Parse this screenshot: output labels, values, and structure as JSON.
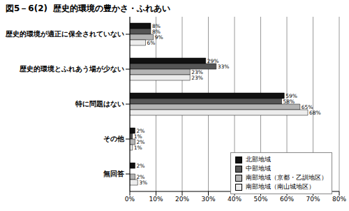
{
  "chart_data": {
    "type": "bar",
    "orientation": "horizontal",
    "title": "図5－6(2)  歴史的環境の豊かさ・ふれあい",
    "categories": [
      "歴史的環境が適正に保全されていない",
      "歴史的環境とふれあう場が少ない",
      "特に問題はない",
      "その他",
      "無回答"
    ],
    "series": [
      {
        "name": "北部地域",
        "color": "#111111",
        "values": [
          8,
          29,
          59,
          2,
          2
        ],
        "value_labels": [
          "8%",
          "29%",
          "59%",
          "2%",
          "2%"
        ]
      },
      {
        "name": "中部地域",
        "color": "#555555",
        "values": [
          8,
          33,
          58,
          1,
          null
        ],
        "value_labels": [
          "8%",
          "33%",
          "58%",
          "1%",
          null
        ]
      },
      {
        "name": "南部地域（京都・乙訓地区）",
        "color": "#b4b4b4",
        "values": [
          9,
          23,
          65,
          2,
          2
        ],
        "value_labels": [
          "9%",
          "23%",
          "65%",
          "2%",
          "2%"
        ]
      },
      {
        "name": "南部地域（南山城地区）",
        "color": "#ececec",
        "values": [
          6,
          23,
          68,
          1,
          3
        ],
        "value_labels": [
          "6%",
          "23%",
          "68%",
          "1%",
          "3%"
        ]
      }
    ],
    "xlim": [
      0,
      80
    ],
    "xticks": [
      {
        "value": 0,
        "label": "0%"
      },
      {
        "value": 10,
        "label": "10%"
      },
      {
        "value": 20,
        "label": "20%"
      },
      {
        "value": 30,
        "label": "30%"
      },
      {
        "value": 40,
        "label": "40%"
      },
      {
        "value": 50,
        "label": "50%"
      },
      {
        "value": 60,
        "label": "60%"
      },
      {
        "value": 70,
        "label": "70%"
      },
      {
        "value": 80,
        "label": "80%"
      }
    ],
    "grid": true,
    "data_labels": true,
    "legend": "lower right"
  }
}
